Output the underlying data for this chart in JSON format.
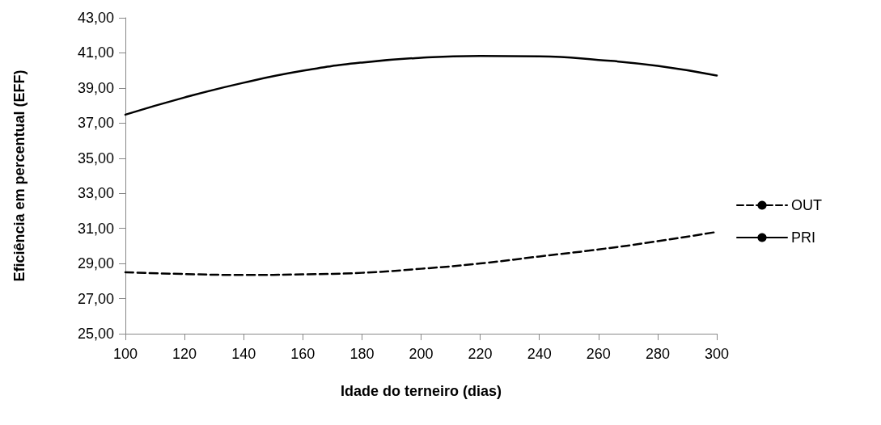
{
  "chart_data": {
    "type": "line",
    "xlabel": "Idade do terneiro (dias)",
    "ylabel": "Eficiência em percentual (EFF)",
    "x": [
      100,
      120,
      140,
      160,
      180,
      200,
      220,
      240,
      260,
      280,
      300
    ],
    "series": [
      {
        "name": "OUT",
        "color": "#000000",
        "line_style": "dashed",
        "values": [
          28.5,
          28.4,
          28.35,
          28.38,
          28.47,
          28.7,
          29.0,
          29.4,
          29.8,
          30.27,
          30.8
        ]
      },
      {
        "name": "PRI",
        "color": "#000000",
        "line_style": "solid",
        "values": [
          37.48,
          38.46,
          39.3,
          39.98,
          40.45,
          40.72,
          40.82,
          40.8,
          40.6,
          40.26,
          39.71
        ]
      }
    ],
    "xlim": [
      100,
      300
    ],
    "xticks": [
      100,
      120,
      140,
      160,
      180,
      200,
      220,
      240,
      260,
      280,
      300
    ],
    "ylim": [
      25,
      43
    ],
    "yticks": [
      {
        "value": 25,
        "label": "25,00"
      },
      {
        "value": 27,
        "label": "27,00"
      },
      {
        "value": 29,
        "label": "29,00"
      },
      {
        "value": 31,
        "label": "31,00"
      },
      {
        "value": 33,
        "label": "33,00"
      },
      {
        "value": 35,
        "label": "35,00"
      },
      {
        "value": 37,
        "label": "37,00"
      },
      {
        "value": 39,
        "label": "39,00"
      },
      {
        "value": 41,
        "label": "41,00"
      },
      {
        "value": 43,
        "label": "43,00"
      }
    ],
    "grid": false,
    "legend": "right",
    "marker": "none"
  }
}
